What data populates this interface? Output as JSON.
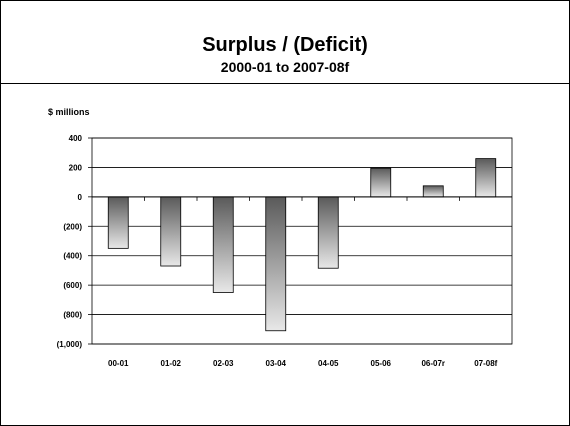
{
  "chart_data": {
    "type": "bar",
    "title": "Surplus / (Deficit)",
    "subtitle": "2000-01 to 2007-08f",
    "ylabel": "$ millions",
    "xlabel": "",
    "categories": [
      "00-01",
      "01-02",
      "02-03",
      "03-04",
      "04-05",
      "05-06",
      "06-07r",
      "07-08f"
    ],
    "values": [
      -350,
      -470,
      -650,
      -910,
      -485,
      195,
      75,
      260
    ],
    "ylim": [
      -1000,
      400
    ],
    "yticks": [
      400,
      200,
      0,
      -200,
      -400,
      -600,
      -800,
      -1000
    ],
    "ytick_labels": [
      "400",
      "200",
      "0",
      "(200)",
      "(400)",
      "(600)",
      "(800)",
      "(1,000)"
    ],
    "grid": true,
    "legend": "none",
    "bar_colors": {
      "light": "#e8e8e8",
      "dark": "#5a5a5a"
    }
  }
}
